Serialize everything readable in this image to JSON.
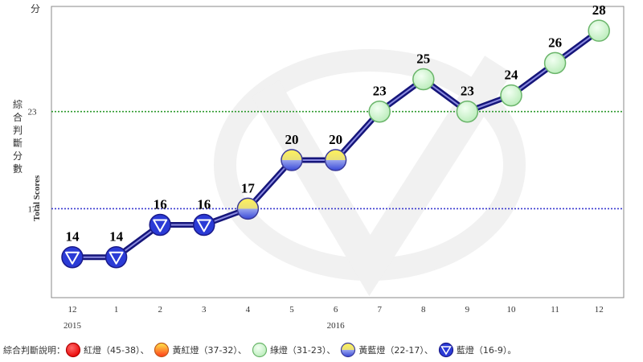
{
  "chart_data": {
    "type": "line",
    "unit_label": "分",
    "ylabel_zh": "綜合判斷分數",
    "ylabel_en": "Total Scores",
    "yticks": [
      17,
      23
    ],
    "ylim": [
      11.5,
      29.5
    ],
    "reference_lines": [
      {
        "value": 23,
        "color": "#2e9a2e"
      },
      {
        "value": 17,
        "color": "#3a3ad0"
      }
    ],
    "categories": [
      "12",
      "1",
      "2",
      "3",
      "4",
      "5",
      "6",
      "7",
      "8",
      "9",
      "10",
      "11",
      "12"
    ],
    "year_labels": [
      {
        "label": "2015",
        "index": 0
      },
      {
        "label": "2016",
        "index": 6
      }
    ],
    "series": [
      {
        "values": [
          14,
          14,
          16,
          16,
          17,
          20,
          20,
          23,
          25,
          23,
          24,
          26,
          28
        ],
        "signals": [
          "blue",
          "blue",
          "blue",
          "blue",
          "yellow-blue",
          "yellow-blue",
          "yellow-blue",
          "green",
          "green",
          "green",
          "green",
          "green",
          "green"
        ]
      }
    ],
    "grid": false
  },
  "legend": {
    "prefix": "綜合判斷說明：",
    "items": [
      {
        "signal": "red",
        "label": "紅燈（45-38）、"
      },
      {
        "signal": "yellow-red",
        "label": "黃紅燈（37-32）、"
      },
      {
        "signal": "green",
        "label": "綠燈（31-23）、"
      },
      {
        "signal": "yellow-blue",
        "label": "黃藍燈（22-17）、"
      },
      {
        "signal": "blue",
        "label": "藍燈（16-9）。"
      }
    ]
  },
  "colors": {
    "line": "#15157a",
    "axis": "#888888",
    "green_light": "#c8f0c8",
    "blue_light": "#2b3bd6",
    "red_light": "#ff1a1a",
    "yellow": "#f2e23a"
  }
}
